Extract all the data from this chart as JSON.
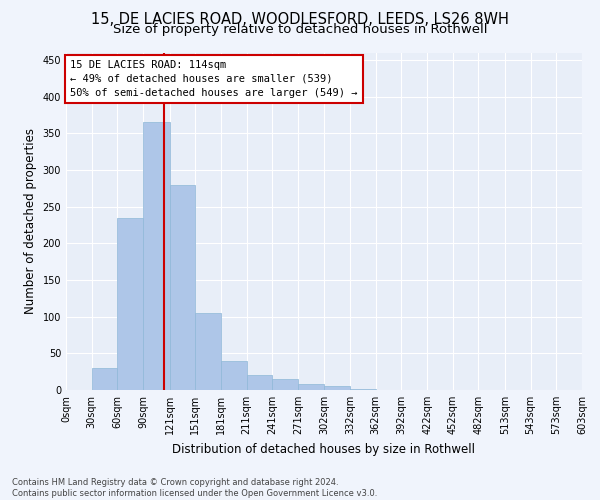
{
  "title": "15, DE LACIES ROAD, WOODLESFORD, LEEDS, LS26 8WH",
  "subtitle": "Size of property relative to detached houses in Rothwell",
  "xlabel": "Distribution of detached houses by size in Rothwell",
  "ylabel": "Number of detached properties",
  "bar_color": "#aec6e8",
  "bar_edge_color": "#8fb8d8",
  "background_color": "#e8eef8",
  "grid_color": "#ffffff",
  "fig_background": "#f0f4fc",
  "vline_x": 114,
  "vline_color": "#cc0000",
  "annotation_text": "15 DE LACIES ROAD: 114sqm\n← 49% of detached houses are smaller (539)\n50% of semi-detached houses are larger (549) →",
  "annotation_box_color": "#ffffff",
  "annotation_box_edge": "#cc0000",
  "bin_edges": [
    0,
    30,
    60,
    90,
    121,
    151,
    181,
    211,
    241,
    271,
    302,
    332,
    362,
    392,
    422,
    452,
    482,
    513,
    543,
    573,
    603
  ],
  "bin_labels": [
    "0sqm",
    "30sqm",
    "60sqm",
    "90sqm",
    "121sqm",
    "151sqm",
    "181sqm",
    "211sqm",
    "241sqm",
    "271sqm",
    "302sqm",
    "332sqm",
    "362sqm",
    "392sqm",
    "422sqm",
    "452sqm",
    "482sqm",
    "513sqm",
    "543sqm",
    "573sqm",
    "603sqm"
  ],
  "counts": [
    0,
    30,
    235,
    365,
    280,
    105,
    40,
    20,
    15,
    8,
    5,
    1,
    0,
    0,
    0,
    0,
    0,
    0,
    0,
    0
  ],
  "ylim": [
    0,
    460
  ],
  "yticks": [
    0,
    50,
    100,
    150,
    200,
    250,
    300,
    350,
    400,
    450
  ],
  "footer_text": "Contains HM Land Registry data © Crown copyright and database right 2024.\nContains public sector information licensed under the Open Government Licence v3.0.",
  "title_fontsize": 10.5,
  "subtitle_fontsize": 9.5,
  "tick_fontsize": 7,
  "ylabel_fontsize": 8.5,
  "xlabel_fontsize": 8.5,
  "footer_fontsize": 6.0
}
